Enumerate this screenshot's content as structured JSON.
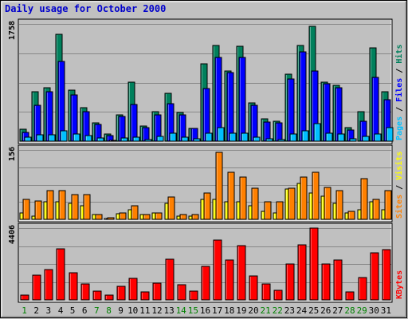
{
  "colors": {
    "background": "#c0c0c0",
    "panel": "#c0c0c0",
    "title": "#0000cc",
    "grid": "#888888",
    "hits": "#00805c",
    "files": "#0000ff",
    "pages": "#00c0ff",
    "visits": "#ffff00",
    "sites": "#ff8000",
    "kbytes": "#ff0000",
    "weekday_label": "#000000",
    "weekend_label": "#008000"
  },
  "chart_data": {
    "type": "bar",
    "title": "Daily usage for October 2000",
    "categories": [
      "1",
      "2",
      "3",
      "4",
      "5",
      "6",
      "7",
      "8",
      "9",
      "10",
      "11",
      "12",
      "13",
      "14",
      "15",
      "16",
      "17",
      "18",
      "19",
      "20",
      "21",
      "22",
      "23",
      "24",
      "25",
      "26",
      "27",
      "28",
      "29",
      "30",
      "31"
    ],
    "weekend_days": [
      "1",
      "7",
      "8",
      "14",
      "15",
      "21",
      "22",
      "28",
      "29"
    ],
    "panels": [
      {
        "name": "traffic",
        "ymax": 1758,
        "ymax_label": "1758",
        "legend": [
          {
            "label": "Pages",
            "color_key": "pages"
          },
          {
            "label": "Files",
            "color_key": "files"
          },
          {
            "label": "Hits",
            "color_key": "hits"
          }
        ],
        "separator": " / ",
        "series": [
          {
            "name": "Hits",
            "color_key": "hits",
            "values": [
              180,
              740,
              800,
              1600,
              760,
              500,
              280,
              110,
              400,
              890,
              230,
              440,
              720,
              430,
              190,
              1160,
              1430,
              1050,
              1420,
              570,
              330,
              300,
              1010,
              1430,
              1720,
              880,
              840,
              200,
              440,
              1400,
              740
            ]
          },
          {
            "name": "Files",
            "color_key": "files",
            "values": [
              130,
              540,
              740,
              1200,
              690,
              440,
              250,
              80,
              370,
              550,
              200,
              390,
              560,
              390,
              190,
              790,
              1260,
              1030,
              1250,
              540,
              290,
              280,
              930,
              1340,
              1050,
              860,
              800,
              170,
              300,
              960,
              620
            ]
          },
          {
            "name": "Pages",
            "color_key": "pages",
            "values": [
              60,
              90,
              100,
              160,
              110,
              80,
              50,
              10,
              50,
              60,
              20,
              70,
              120,
              60,
              30,
              120,
              200,
              120,
              120,
              60,
              30,
              20,
              110,
              150,
              260,
              120,
              110,
              40,
              70,
              110,
              200
            ]
          }
        ]
      },
      {
        "name": "visitors",
        "ymax": 156,
        "ymax_label": "156",
        "legend": [
          {
            "label": "Sites",
            "color_key": "sites"
          },
          {
            "label": "Visits",
            "color_key": "visits"
          }
        ],
        "separator": " / ",
        "series": [
          {
            "name": "Visits",
            "color_key": "visits",
            "values": [
              15,
              8,
              40,
              40,
              35,
              30,
              10,
              2,
              12,
              22,
              10,
              15,
              35,
              8,
              8,
              45,
              45,
              40,
              40,
              30,
              18,
              15,
              68,
              80,
              60,
              52,
              35,
              15,
              22,
              40,
              22
            ]
          },
          {
            "name": "Sites",
            "color_key": "sites",
            "values": [
              45,
              42,
              65,
              65,
              55,
              55,
              10,
              3,
              15,
              30,
              10,
              15,
              50,
              10,
              10,
              60,
              150,
              105,
              95,
              70,
              40,
              40,
              70,
              95,
              105,
              72,
              65,
              18,
              92,
              45,
              65
            ]
          }
        ]
      },
      {
        "name": "volume",
        "ymax": 4406,
        "ymax_label": "4406",
        "legend": [
          {
            "label": "KBytes",
            "color_key": "kbytes"
          }
        ],
        "separator": "",
        "series": [
          {
            "name": "KBytes",
            "color_key": "kbytes",
            "values": [
              300,
              1500,
              1850,
              3150,
              1650,
              1000,
              550,
              300,
              850,
              1300,
              500,
              1050,
              2500,
              950,
              520,
              2050,
              3650,
              2450,
              3350,
              1450,
              1000,
              600,
              2200,
              3400,
              4400,
              2200,
              2450,
              500,
              1350,
              2900,
              3100
            ]
          }
        ]
      }
    ]
  }
}
